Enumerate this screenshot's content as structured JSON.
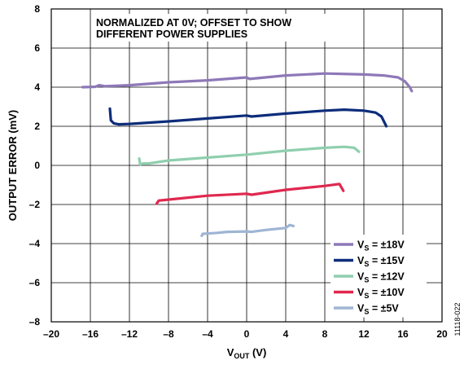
{
  "chart_data": {
    "type": "line",
    "title": "",
    "annotation": [
      "NORMALIZED AT 0V; OFFSET TO SHOW",
      "DIFFERENT POWER SUPPLIES"
    ],
    "xlabel": {
      "main": "V",
      "sub": "OUT",
      "unit": " (V)"
    },
    "ylabel": "OUTPUT ERROR (mV)",
    "xlim": [
      -20,
      20
    ],
    "ylim": [
      -8,
      8
    ],
    "xticks": [
      "–20",
      "–16",
      "–12",
      "–8",
      "–4",
      "0",
      "4",
      "8",
      "12",
      "16",
      "20"
    ],
    "yticks": [
      "8",
      "6",
      "4",
      "2",
      "0",
      "–2",
      "–4",
      "–6",
      "–8"
    ],
    "grid": true,
    "legend_position": "bottom-right",
    "figure_id": "11118-022",
    "series": [
      {
        "name": "VS = ±18V",
        "label_main": "V",
        "label_sub": "S",
        "label_rest": " = ±18V",
        "color": "#8e78b8",
        "x": [
          -16.8,
          -15.5,
          -15.1,
          -14.5,
          -12,
          -8,
          -4,
          0,
          0.3,
          4,
          8,
          12,
          14,
          15.5,
          16.2,
          16.7,
          16.9
        ],
        "y": [
          4.0,
          4.02,
          4.1,
          4.05,
          4.1,
          4.25,
          4.35,
          4.5,
          4.42,
          4.6,
          4.7,
          4.65,
          4.6,
          4.5,
          4.3,
          4.0,
          3.8
        ]
      },
      {
        "name": "VS = ±15V",
        "label_main": "V",
        "label_sub": "S",
        "label_rest": " = ±15V",
        "color": "#0d2d7a",
        "x": [
          -14,
          -13.9,
          -13.6,
          -13.1,
          -12,
          -8,
          -4,
          0,
          0.5,
          4,
          8,
          10,
          12,
          13.2,
          13.8,
          14.3
        ],
        "y": [
          2.9,
          2.3,
          2.15,
          2.1,
          2.12,
          2.25,
          2.4,
          2.55,
          2.5,
          2.65,
          2.8,
          2.85,
          2.8,
          2.7,
          2.5,
          2.0
        ]
      },
      {
        "name": "VS = ±12V",
        "label_main": "V",
        "label_sub": "S",
        "label_rest": " = ±12V",
        "color": "#8fcfae",
        "x": [
          -11,
          -10.9,
          -10.6,
          -10,
          -8,
          -4,
          0,
          4,
          8,
          10,
          11,
          11.5
        ],
        "y": [
          0.35,
          0.05,
          0.1,
          0.1,
          0.25,
          0.4,
          0.55,
          0.75,
          0.9,
          0.95,
          0.9,
          0.7
        ]
      },
      {
        "name": "VS = ±10V",
        "label_main": "V",
        "label_sub": "S",
        "label_rest": " = ±10V",
        "color": "#e0284f",
        "x": [
          -9.2,
          -9.0,
          -8,
          -4,
          0,
          0.5,
          4,
          8,
          9.5,
          9.9
        ],
        "y": [
          -1.95,
          -1.8,
          -1.75,
          -1.55,
          -1.45,
          -1.5,
          -1.25,
          -1.05,
          -0.95,
          -1.3
        ]
      },
      {
        "name": "VS = ±5V",
        "label_main": "V",
        "label_sub": "S",
        "label_rest": " = ±5V",
        "color": "#9fb5d4",
        "x": [
          -4.6,
          -4.5,
          -3,
          -2,
          0,
          0.5,
          2,
          4,
          4.4,
          4.8
        ],
        "y": [
          -3.6,
          -3.5,
          -3.45,
          -3.4,
          -3.38,
          -3.4,
          -3.3,
          -3.2,
          -3.05,
          -3.1
        ]
      }
    ]
  }
}
